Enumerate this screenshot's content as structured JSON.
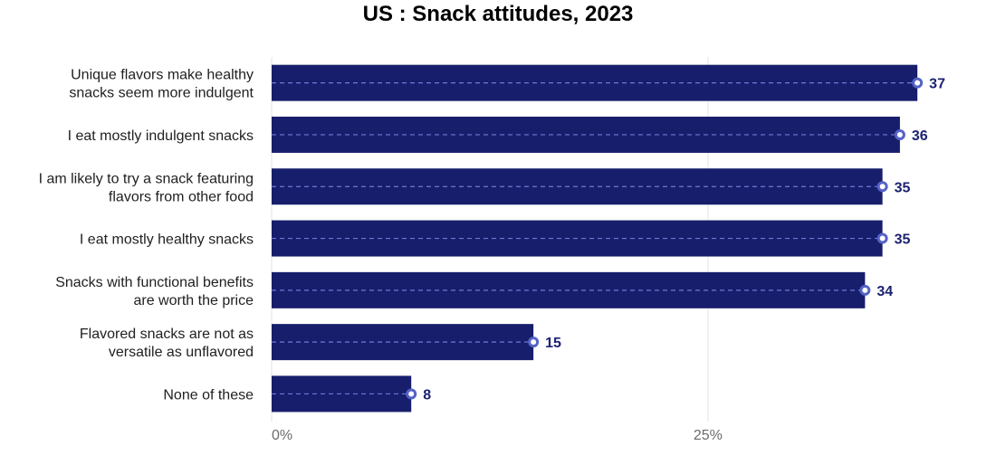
{
  "chart_data": {
    "type": "bar",
    "orientation": "horizontal",
    "title": "US : Snack attitudes, 2023",
    "xlabel": "",
    "ylabel": "",
    "categories": [
      [
        "Unique flavors make healthy",
        "snacks seem more indulgent"
      ],
      [
        "I eat mostly indulgent snacks"
      ],
      [
        "I am likely to try a snack featuring",
        "flavors from other food"
      ],
      [
        "I eat mostly healthy snacks"
      ],
      [
        "Snacks with functional benefits",
        "are worth the price"
      ],
      [
        "Flavored snacks are not as",
        "versatile as unflavored"
      ],
      [
        "None of these"
      ]
    ],
    "values": [
      37,
      36,
      35,
      35,
      34,
      15,
      8
    ],
    "xlim": [
      0,
      40
    ],
    "x_ticks": [
      {
        "value": 0,
        "label": "0%"
      },
      {
        "value": 25,
        "label": "25%"
      }
    ],
    "grid": "vertical",
    "legend": "none",
    "colors": {
      "bar": "#171e6b",
      "marker": "#5563c7",
      "dash": "#6f79d6",
      "grid": "#e3e3e3",
      "data_label": "#1c2270"
    }
  }
}
